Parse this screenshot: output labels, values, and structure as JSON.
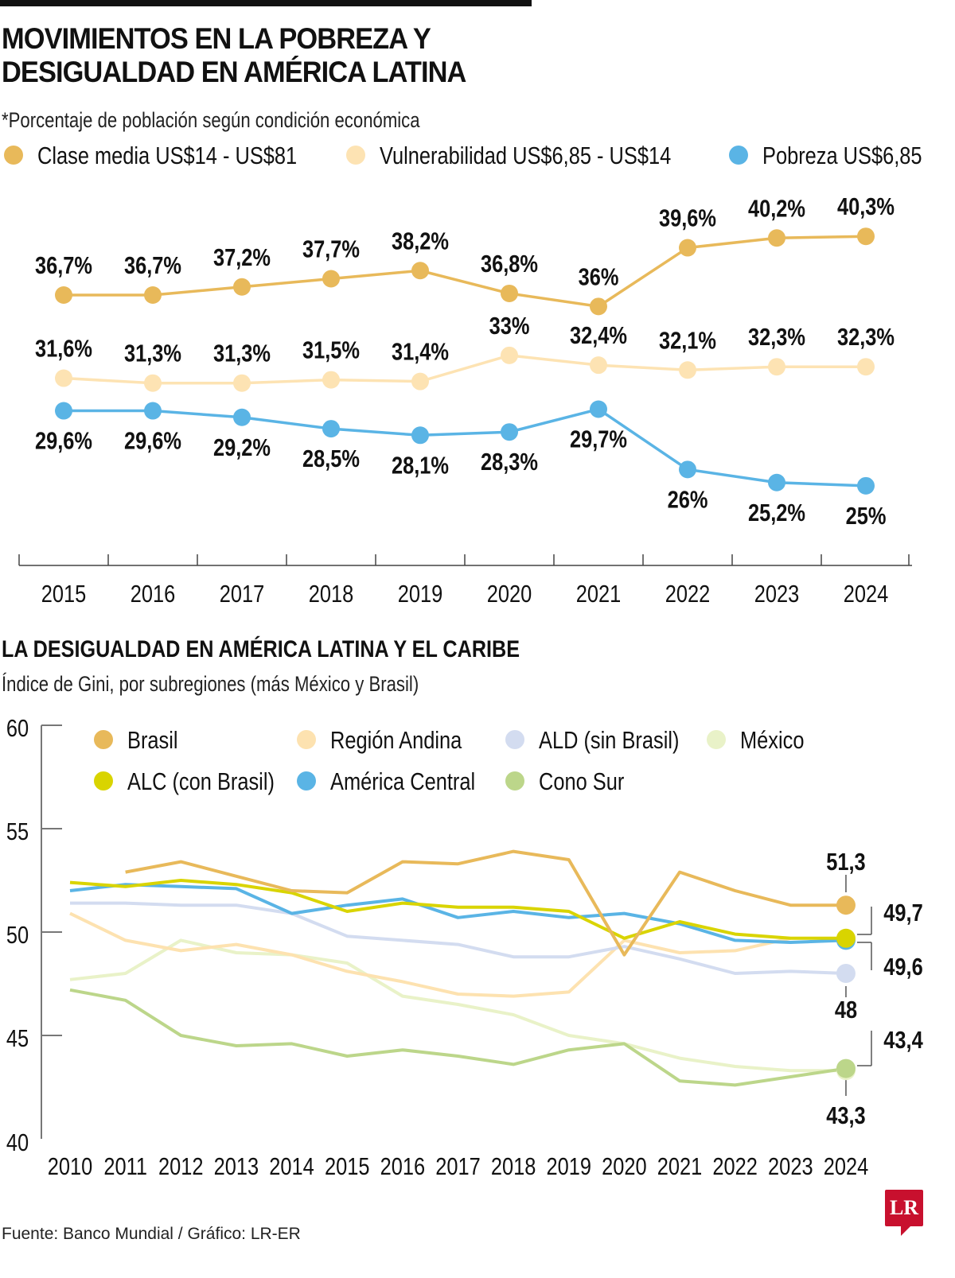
{
  "header": {
    "title_line1": "MOVIMIENTOS EN LA POBREZA Y",
    "title_line2": "DESIGUALDAD EN AMÉRICA LATINA",
    "subtitle": "*Porcentaje de población según condición económica"
  },
  "section2": {
    "title": "LA DESIGUALDAD EN AMÉRICA LATINA Y EL CARIBE",
    "subtitle": "Índice de Gini, por subregiones (más México y Brasil)"
  },
  "footer": {
    "source": "Fuente: Banco Mundial / Gráfico: LR-ER",
    "logo": "LR"
  },
  "chart_data": [
    {
      "type": "line",
      "x": [
        "2015",
        "2016",
        "2017",
        "2018",
        "2019",
        "2020",
        "2021",
        "2022",
        "2023",
        "2024"
      ],
      "grid": false,
      "legend_placement": "top",
      "series": [
        {
          "name": "Clase media US$14 - US$81",
          "color": "#e8b95a",
          "values": [
            36.7,
            36.7,
            37.2,
            37.7,
            38.2,
            36.8,
            36.0,
            39.6,
            40.2,
            40.3
          ],
          "labels": [
            "36,7%",
            "36,7%",
            "37,2%",
            "37,7%",
            "38,2%",
            "36,8%",
            "36%",
            "39,6%",
            "40,2%",
            "40,3%"
          ],
          "label_pos": "above"
        },
        {
          "name": "Vulnerabilidad US$6,85 - US$14",
          "color": "#fde3b3",
          "values": [
            31.6,
            31.3,
            31.3,
            31.5,
            31.4,
            33.0,
            32.4,
            32.1,
            32.3,
            32.3
          ],
          "labels": [
            "31,6%",
            "31,3%",
            "31,3%",
            "31,5%",
            "31,4%",
            "33%",
            "32,4%",
            "32,1%",
            "32,3%",
            "32,3%"
          ],
          "label_pos": "above"
        },
        {
          "name": "Pobreza US$6,85",
          "color": "#5ab4e5",
          "values": [
            29.6,
            29.6,
            29.2,
            28.5,
            28.1,
            28.3,
            29.7,
            26.0,
            25.2,
            25.0
          ],
          "labels": [
            "29,6%",
            "29,6%",
            "29,2%",
            "28,5%",
            "28,1%",
            "28,3%",
            "29,7%",
            "26%",
            "25,2%",
            "25%"
          ],
          "label_pos": "below"
        }
      ]
    },
    {
      "type": "line",
      "x": [
        "2010",
        "2011",
        "2012",
        "2013",
        "2014",
        "2015",
        "2016",
        "2017",
        "2018",
        "2019",
        "2020",
        "2021",
        "2022",
        "2023",
        "2024"
      ],
      "ylim": [
        40,
        60
      ],
      "yticks": [
        "60",
        "55",
        "50",
        "45",
        "40"
      ],
      "grid": false,
      "legend_placement": "top",
      "series": [
        {
          "name": "Brasil",
          "color": "#e8b95a",
          "values": [
            null,
            52.9,
            53.4,
            52.7,
            52.0,
            51.9,
            53.4,
            53.3,
            53.9,
            53.5,
            48.9,
            52.9,
            52.0,
            51.3,
            51.3
          ]
        },
        {
          "name": "Región Andina",
          "color": "#fde2b0",
          "values": [
            50.9,
            49.6,
            49.1,
            49.4,
            48.9,
            48.1,
            47.6,
            47.0,
            46.9,
            47.1,
            49.6,
            49.0,
            49.1,
            49.7,
            null
          ]
        },
        {
          "name": "ALD (sin Brasil)",
          "color": "#d3dcf0",
          "values": [
            51.4,
            51.4,
            51.3,
            51.3,
            50.9,
            49.8,
            49.6,
            49.4,
            48.8,
            48.8,
            49.3,
            48.7,
            48.0,
            48.1,
            48.0
          ]
        },
        {
          "name": "México",
          "color": "#e9f2c8",
          "values": [
            47.7,
            48.0,
            49.6,
            49.0,
            48.9,
            48.5,
            46.9,
            46.5,
            46.0,
            45.0,
            44.6,
            43.9,
            43.5,
            43.3,
            43.3
          ]
        },
        {
          "name": "ALC (con Brasil)",
          "color": "#d9d400",
          "values": [
            52.4,
            52.2,
            52.5,
            52.3,
            51.9,
            51.0,
            51.4,
            51.2,
            51.2,
            51.0,
            49.7,
            50.5,
            49.9,
            49.7,
            49.7
          ]
        },
        {
          "name": "América Central",
          "color": "#5ab4e5",
          "values": [
            52.0,
            52.3,
            52.2,
            52.1,
            50.9,
            51.3,
            51.6,
            50.7,
            51.0,
            50.7,
            50.9,
            50.4,
            49.6,
            49.5,
            49.6
          ]
        },
        {
          "name": "Cono Sur",
          "color": "#bcd68a",
          "values": [
            47.2,
            46.7,
            45.0,
            44.5,
            44.6,
            44.0,
            44.3,
            44.0,
            43.6,
            44.3,
            44.6,
            42.8,
            42.6,
            43.0,
            43.4
          ]
        }
      ],
      "end_labels": {
        "brasil": "51,3",
        "alc": "49,7",
        "america_central": "49,6",
        "ald": "48",
        "cono_sur": "43,4",
        "mexico": "43,3"
      }
    }
  ]
}
